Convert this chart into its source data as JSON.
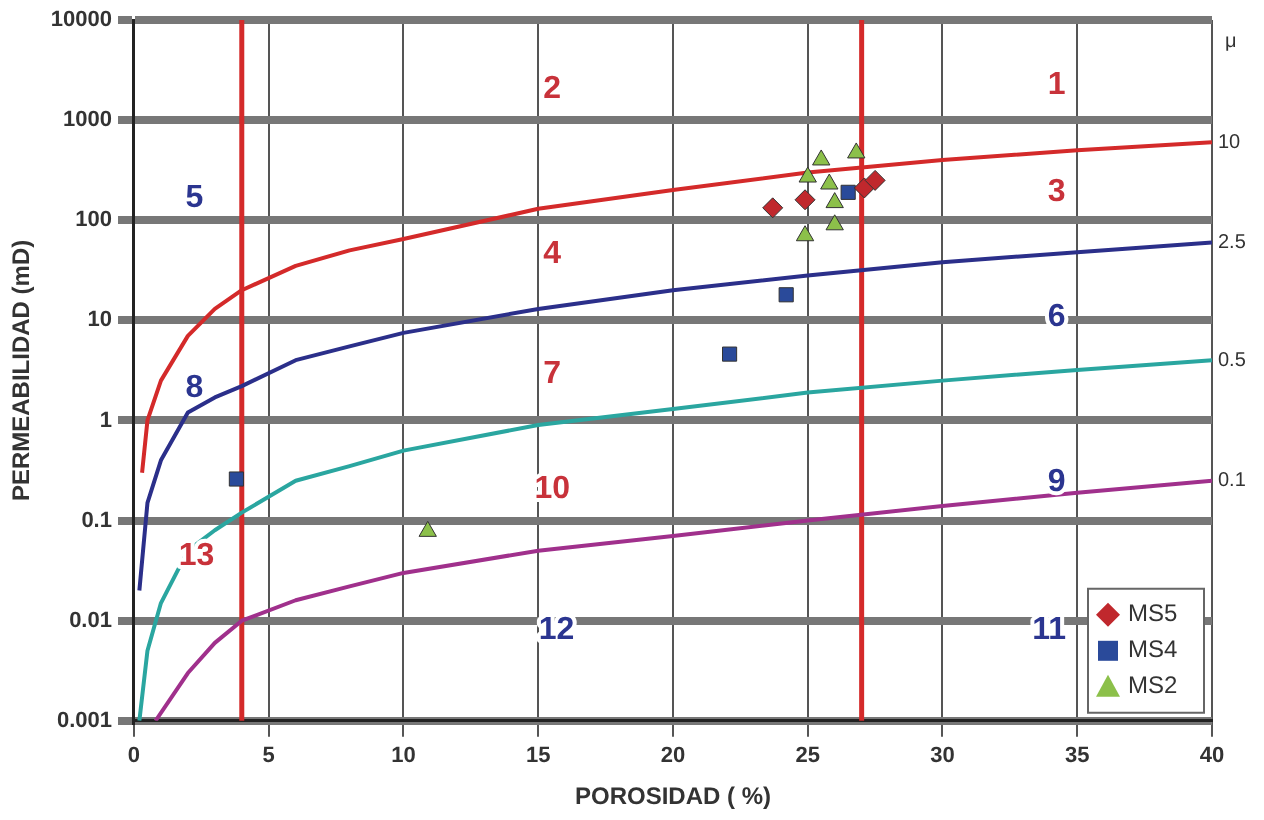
{
  "chart_data": {
    "type": "scatter",
    "xlabel": "POROSIDAD ( %)",
    "ylabel": "PERMEABILIDAD (mD)",
    "xlim": [
      0,
      40
    ],
    "xticks": [
      0,
      5,
      10,
      15,
      20,
      25,
      30,
      35,
      40
    ],
    "ylim": [
      0.001,
      10000
    ],
    "yticks": [
      0.001,
      0.01,
      0.1,
      1,
      10,
      100,
      1000,
      10000
    ],
    "log": "y",
    "grid": true,
    "legend": "bottom right",
    "series": [
      {
        "type": "line",
        "name": "10",
        "color": "#d42a2a",
        "marker": "none",
        "x": [
          0.3,
          0.5,
          1,
          2,
          3,
          4,
          6,
          8,
          10,
          15,
          20,
          25,
          30,
          35,
          40
        ],
        "values": [
          0.3,
          1,
          2.5,
          7,
          13,
          20,
          35,
          50,
          65,
          130,
          200,
          300,
          400,
          500,
          600
        ]
      },
      {
        "type": "line",
        "name": "2.5",
        "color": "#2b2f8a",
        "marker": "none",
        "x": [
          0.2,
          0.5,
          1,
          2,
          3,
          4,
          6,
          8,
          10,
          15,
          20,
          25,
          30,
          35,
          40
        ],
        "values": [
          0.02,
          0.15,
          0.4,
          1.2,
          1.7,
          2.2,
          4,
          5.5,
          7.5,
          13,
          20,
          28,
          38,
          48,
          60
        ]
      },
      {
        "type": "line",
        "name": "0.5",
        "color": "#2aa6a0",
        "marker": "none",
        "x": [
          0.2,
          0.5,
          1,
          2,
          3,
          4,
          6,
          8,
          10,
          15,
          20,
          25,
          30,
          35,
          40
        ],
        "values": [
          0.001,
          0.005,
          0.015,
          0.05,
          0.08,
          0.12,
          0.25,
          0.35,
          0.5,
          0.9,
          1.3,
          1.9,
          2.5,
          3.2,
          4
        ]
      },
      {
        "type": "line",
        "name": "0.1",
        "color": "#a0308c",
        "marker": "none",
        "x": [
          0.8,
          2,
          3,
          4,
          6,
          8,
          10,
          15,
          20,
          25,
          30,
          35,
          40
        ],
        "values": [
          0.001,
          0.003,
          0.006,
          0.01,
          0.016,
          0.022,
          0.03,
          0.05,
          0.07,
          0.1,
          0.14,
          0.19,
          0.25
        ]
      },
      {
        "name": "MS5",
        "color": "#c0282d",
        "marker": "diamond",
        "x": [
          23.7,
          24.9,
          27.1,
          27.5
        ],
        "values": [
          133,
          160,
          210,
          250
        ]
      },
      {
        "name": "MS4",
        "color": "#2a4a9a",
        "marker": "square",
        "x": [
          3.8,
          22.1,
          24.2,
          26.5
        ],
        "values": [
          0.26,
          4.6,
          18,
          190
        ]
      },
      {
        "name": "MS2",
        "color": "#8cc04a",
        "marker": "triangle",
        "x": [
          10.9,
          24.9,
          25.5,
          25.0,
          26.0,
          26.0,
          26.8,
          25.8
        ],
        "values": [
          0.078,
          70,
          400,
          270,
          90,
          150,
          470,
          230
        ]
      }
    ],
    "ref_lines": [
      {
        "axis": "x",
        "value": 4,
        "color": "#d42a2a"
      },
      {
        "axis": "x",
        "value": 27,
        "color": "#d42a2a"
      }
    ],
    "annotations": [
      "1",
      "2",
      "3",
      "4",
      "5",
      "6",
      "7",
      "8",
      "9",
      "10",
      "11",
      "12",
      "13",
      "μ"
    ]
  }
}
